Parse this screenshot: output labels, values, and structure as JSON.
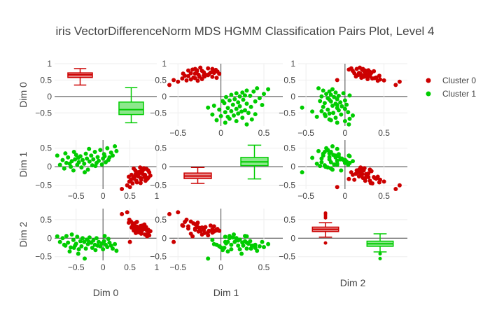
{
  "title": "iris VectorDifferenceNorm MDS HGMM Classification Pairs Plot, Level 4",
  "dims": [
    "Dim 0",
    "Dim 1",
    "Dim 2"
  ],
  "legend": [
    {
      "name": "Cluster 0",
      "color": "#cc0000"
    },
    {
      "name": "Cluster 1",
      "color": "#00cc00"
    }
  ],
  "chart_data": {
    "type": "scatter",
    "subtype": "pairs-plot-with-box-diagonals",
    "title": "iris VectorDifferenceNorm MDS HGMM Classification Pairs Plot, Level 4",
    "dims": [
      "Dim 0",
      "Dim 1",
      "Dim 2"
    ],
    "grid": true,
    "legend_placement": "top-right",
    "axis_ranges": {
      "Dim 0": [
        -0.9,
        1.0
      ],
      "Dim 1": [
        -0.6,
        0.72
      ],
      "Dim 2": [
        -0.6,
        0.8
      ]
    },
    "ticks": {
      "Dim 0": [
        -0.5,
        0,
        0.5,
        1
      ],
      "Dim 1": [
        -0.5,
        0,
        0.5,
        1
      ],
      "Dim 2": [
        -0.5,
        0,
        0.5
      ]
    },
    "box_stats": {
      "Dim 0": [
        {
          "series": "Cluster 0",
          "min": 0.35,
          "q1": 0.58,
          "median": 0.66,
          "q3": 0.72,
          "max": 0.85
        },
        {
          "series": "Cluster 1",
          "min": -0.8,
          "q1": -0.55,
          "median": -0.4,
          "q3": -0.17,
          "max": 0.27
        }
      ],
      "Dim 1": [
        {
          "series": "Cluster 0",
          "min": -0.45,
          "q1": -0.32,
          "median": -0.25,
          "q3": -0.17,
          "max": -0.02
        },
        {
          "series": "Cluster 1",
          "min": -0.33,
          "q1": 0.03,
          "median": 0.13,
          "q3": 0.25,
          "max": 0.58
        }
      ],
      "Dim 2": [
        {
          "series": "Cluster 0",
          "min": 0.03,
          "q1": 0.18,
          "median": 0.24,
          "q3": 0.3,
          "max": 0.42,
          "outliers": [
            -0.13,
            0.55,
            0.6,
            0.65,
            0.68
          ]
        },
        {
          "series": "Cluster 1",
          "min": -0.37,
          "q1": -0.22,
          "median": -0.15,
          "q3": -0.08,
          "max": 0.12,
          "outliers": [
            -0.42,
            -0.55
          ]
        }
      ]
    },
    "series": [
      {
        "name": "Cluster 0",
        "color": "#cc0000",
        "points": [
          [
            0.45,
            -0.5,
            0.7
          ],
          [
            0.49,
            -0.4,
            0.5
          ],
          [
            0.52,
            -0.35,
            0.45
          ],
          [
            0.56,
            -0.3,
            0.38
          ],
          [
            0.6,
            -0.25,
            0.28
          ],
          [
            0.64,
            -0.2,
            0.22
          ],
          [
            0.68,
            -0.14,
            0.2
          ],
          [
            0.72,
            -0.08,
            0.18
          ],
          [
            0.76,
            -0.04,
            0.25
          ],
          [
            0.8,
            -0.28,
            0.3
          ],
          [
            0.84,
            -0.1,
            0.15
          ],
          [
            0.55,
            -0.45,
            0.35
          ],
          [
            0.62,
            -0.38,
            0.32
          ],
          [
            0.7,
            -0.3,
            0.26
          ],
          [
            0.78,
            -0.22,
            0.1
          ],
          [
            0.67,
            -0.18,
            0.3
          ],
          [
            0.73,
            -0.12,
            0.34
          ],
          [
            0.81,
            -0.06,
            0.22
          ],
          [
            0.58,
            -0.32,
            0.4
          ],
          [
            0.66,
            -0.26,
            0.18
          ],
          [
            0.74,
            -0.2,
            0.27
          ],
          [
            0.86,
            -0.15,
            0.08
          ],
          [
            0.63,
            -0.42,
            0.44
          ],
          [
            0.71,
            -0.35,
            0.12
          ],
          [
            0.77,
            -0.28,
            0.37
          ],
          [
            0.69,
            -0.02,
            0.2
          ],
          [
            0.6,
            -0.1,
            0.24
          ],
          [
            0.53,
            -0.22,
            0.29
          ],
          [
            0.35,
            -0.6,
            0.65
          ],
          [
            0.5,
            -0.55,
            -0.1
          ],
          [
            0.82,
            -0.33,
            0.05
          ],
          [
            0.75,
            -0.08,
            0.32
          ],
          [
            0.65,
            -0.15,
            0.16
          ],
          [
            0.57,
            -0.05,
            0.21
          ],
          [
            0.88,
            -0.24,
            0.19
          ],
          [
            0.79,
            -0.38,
            0.26
          ],
          [
            0.48,
            -0.27,
            0.42
          ],
          [
            0.61,
            -0.19,
            0.14
          ],
          [
            0.7,
            -0.44,
            0.33
          ],
          [
            0.84,
            -0.3,
            0.23
          ]
        ]
      },
      {
        "name": "Cluster 1",
        "color": "#00cc00",
        "points": [
          [
            -0.85,
            0.3,
            0.05
          ],
          [
            -0.8,
            0.05,
            -0.1
          ],
          [
            -0.75,
            0.18,
            0.0
          ],
          [
            -0.72,
            -0.05,
            -0.18
          ],
          [
            -0.68,
            0.1,
            0.06
          ],
          [
            -0.65,
            0.25,
            -0.12
          ],
          [
            -0.6,
            0.0,
            -0.25
          ],
          [
            -0.58,
            0.15,
            0.1
          ],
          [
            -0.55,
            -0.1,
            -0.05
          ],
          [
            -0.52,
            0.2,
            -0.2
          ],
          [
            -0.5,
            0.32,
            -0.15
          ],
          [
            -0.48,
            0.05,
            0.04
          ],
          [
            -0.45,
            0.12,
            -0.3
          ],
          [
            -0.42,
            0.28,
            -0.08
          ],
          [
            -0.4,
            -0.02,
            -0.22
          ],
          [
            -0.38,
            0.18,
            0.0
          ],
          [
            -0.35,
            0.08,
            -0.1
          ],
          [
            -0.32,
            0.35,
            -0.28
          ],
          [
            -0.3,
            0.22,
            -0.04
          ],
          [
            -0.28,
            -0.08,
            -0.16
          ],
          [
            -0.25,
            0.14,
            0.02
          ],
          [
            -0.22,
            0.3,
            -0.12
          ],
          [
            -0.2,
            0.04,
            -0.26
          ],
          [
            -0.18,
            0.2,
            -0.06
          ],
          [
            -0.15,
            0.4,
            -0.18
          ],
          [
            -0.12,
            0.1,
            0.0
          ],
          [
            -0.1,
            0.26,
            -0.2
          ],
          [
            -0.08,
            0.16,
            -0.1
          ],
          [
            -0.05,
            0.45,
            -0.22
          ],
          [
            -0.02,
            0.06,
            -0.14
          ],
          [
            0.0,
            0.22,
            -0.3
          ],
          [
            0.02,
            0.34,
            -0.08
          ],
          [
            0.05,
            0.12,
            -0.18
          ],
          [
            0.08,
            0.5,
            -0.24
          ],
          [
            0.12,
            0.25,
            -0.12
          ],
          [
            0.15,
            0.38,
            -0.2
          ],
          [
            0.18,
            0.3,
            -0.28
          ],
          [
            0.22,
            0.55,
            -0.16
          ],
          [
            0.25,
            0.42,
            -0.34
          ],
          [
            0.1,
            0.18,
            -0.02
          ],
          [
            -0.62,
            0.08,
            -0.36
          ],
          [
            -0.46,
            0.24,
            -0.42
          ],
          [
            -0.34,
            -0.15,
            -0.55
          ],
          [
            -0.7,
            0.36,
            -0.2
          ],
          [
            -0.26,
            0.48,
            -0.1
          ],
          [
            -0.14,
            0.02,
            -0.32
          ],
          [
            0.03,
            0.28,
            0.06
          ],
          [
            -0.54,
            0.4,
            -0.26
          ]
        ]
      }
    ]
  }
}
